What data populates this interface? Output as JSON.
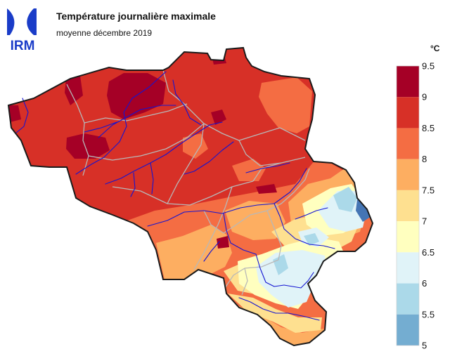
{
  "header": {
    "title": "Température journalière maximale",
    "subtitle": "moyenne décembre 2019"
  },
  "logo": {
    "text": "IRM",
    "color": "#1a3cc8"
  },
  "legend": {
    "unit": "°C",
    "stops": [
      {
        "label": "9.5",
        "color": "#a50026"
      },
      {
        "label": "9",
        "color": "#d73027"
      },
      {
        "label": "8.5",
        "color": "#f46d43"
      },
      {
        "label": "8",
        "color": "#fdae61"
      },
      {
        "label": "7.5",
        "color": "#fee090"
      },
      {
        "label": "7",
        "color": "#ffffbf"
      },
      {
        "label": "6.5",
        "color": "#e0f3f8"
      },
      {
        "label": "6",
        "color": "#abd9e9"
      },
      {
        "label": "5.5",
        "color": "#74add1"
      },
      {
        "label": "5",
        "color": "#4575b4"
      }
    ],
    "bands": [
      {
        "min": 9,
        "max": 9.5,
        "color": "#a50026"
      },
      {
        "min": 8.5,
        "max": 9,
        "color": "#d73027"
      },
      {
        "min": 8,
        "max": 8.5,
        "color": "#f46d43"
      },
      {
        "min": 7.5,
        "max": 8,
        "color": "#fdae61"
      },
      {
        "min": 7,
        "max": 7.5,
        "color": "#fee090"
      },
      {
        "min": 6.5,
        "max": 7,
        "color": "#ffffbf"
      },
      {
        "min": 6,
        "max": 6.5,
        "color": "#e0f3f8"
      },
      {
        "min": 5.5,
        "max": 6,
        "color": "#abd9e9"
      },
      {
        "min": 5,
        "max": 5.5,
        "color": "#74add1"
      }
    ]
  },
  "map_style": {
    "border_color": "#1a1a1a",
    "province_color": "#b8b8b8",
    "river_color": "#1414d2",
    "zones": {
      "t9": "#a50026",
      "t85": "#d73027",
      "t8": "#f46d43",
      "t75": "#fdae61",
      "t7": "#fee090",
      "t65": "#ffffbf",
      "t6": "#e0f3f8",
      "t55": "#abd9e9",
      "t5": "#74add1",
      "t45": "#4575b4",
      "t4": "#313695"
    }
  }
}
